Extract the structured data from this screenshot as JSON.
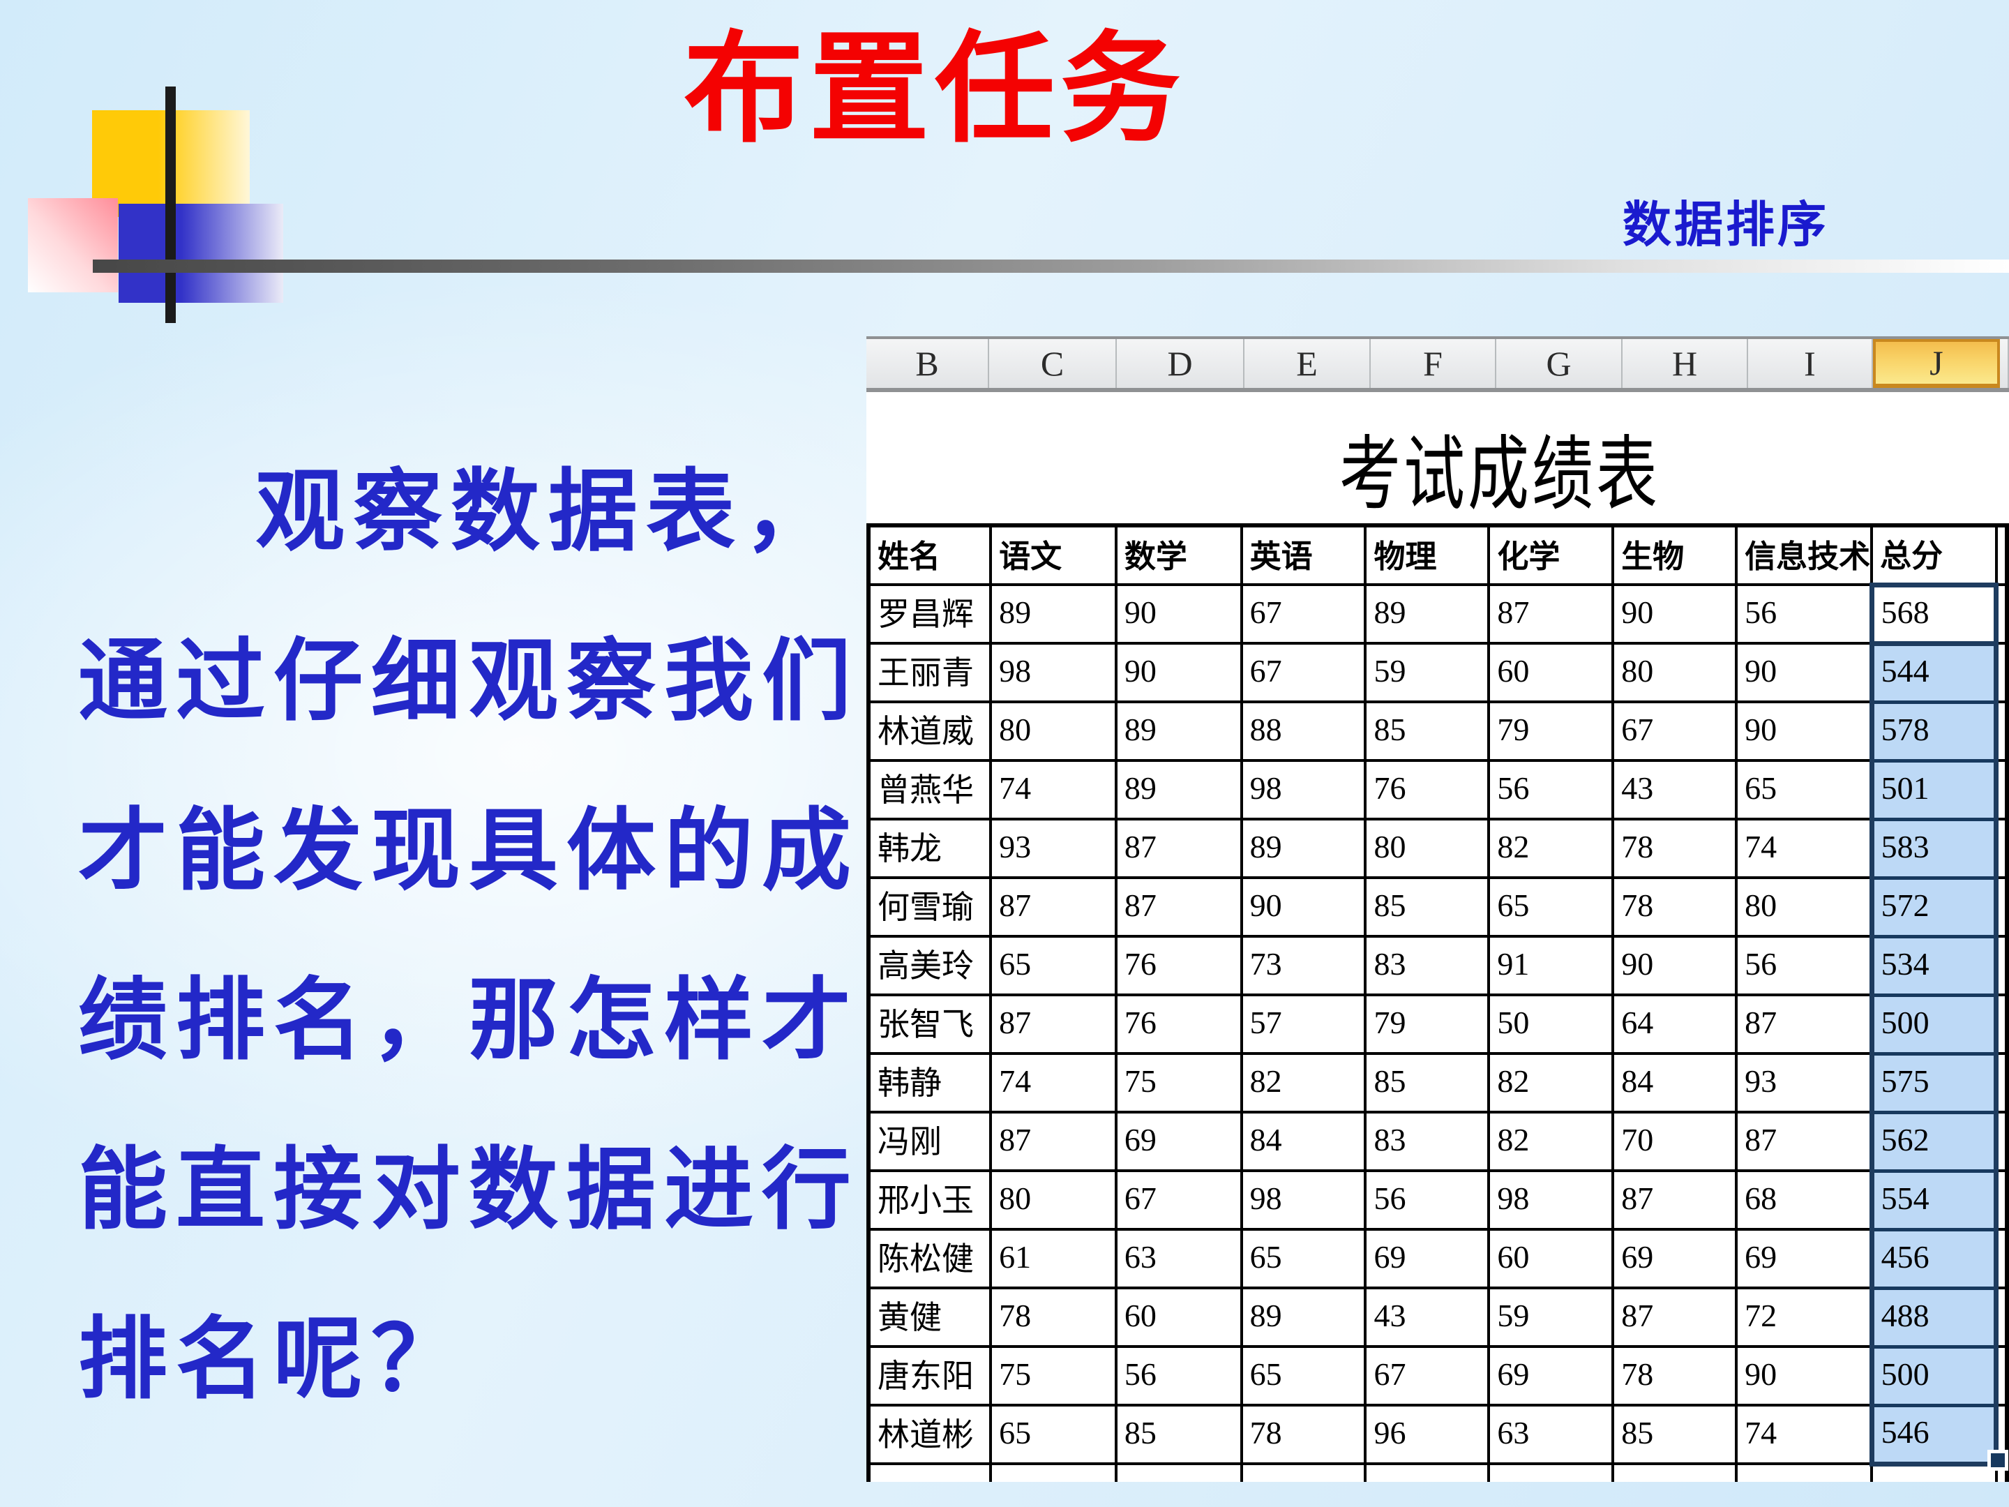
{
  "slide": {
    "title": "布置任务",
    "corner_label": "数据排序",
    "body_lines": [
      "观察数据表，",
      "通过仔细观察我们",
      "才能发现具体的成",
      "绩排名，那怎样才",
      "能直接对数据进行",
      "排名呢？"
    ]
  },
  "spreadsheet": {
    "column_letters": [
      "B",
      "C",
      "D",
      "E",
      "F",
      "G",
      "H",
      "I",
      "J"
    ],
    "selected_column": "J",
    "sheet_title": "考试成绩表",
    "table": {
      "headers": [
        "姓名",
        "语文",
        "数学",
        "英语",
        "物理",
        "化学",
        "生物",
        "信息技术",
        "总分"
      ],
      "rows": [
        [
          "罗昌辉",
          "89",
          "90",
          "67",
          "89",
          "87",
          "90",
          "56",
          "568"
        ],
        [
          "王丽青",
          "98",
          "90",
          "67",
          "59",
          "60",
          "80",
          "90",
          "544"
        ],
        [
          "林道威",
          "80",
          "89",
          "88",
          "85",
          "79",
          "67",
          "90",
          "578"
        ],
        [
          "曾燕华",
          "74",
          "89",
          "98",
          "76",
          "56",
          "43",
          "65",
          "501"
        ],
        [
          "韩龙",
          "93",
          "87",
          "89",
          "80",
          "82",
          "78",
          "74",
          "583"
        ],
        [
          "何雪瑜",
          "87",
          "87",
          "90",
          "85",
          "65",
          "78",
          "80",
          "572"
        ],
        [
          "高美玲",
          "65",
          "76",
          "73",
          "83",
          "91",
          "90",
          "56",
          "534"
        ],
        [
          "张智飞",
          "87",
          "76",
          "57",
          "79",
          "50",
          "64",
          "87",
          "500"
        ],
        [
          "韩静",
          "74",
          "75",
          "82",
          "85",
          "82",
          "84",
          "93",
          "575"
        ],
        [
          "冯刚",
          "87",
          "69",
          "84",
          "83",
          "82",
          "70",
          "87",
          "562"
        ],
        [
          "邢小玉",
          "80",
          "67",
          "98",
          "56",
          "98",
          "87",
          "68",
          "554"
        ],
        [
          "陈松健",
          "61",
          "63",
          "65",
          "69",
          "60",
          "69",
          "69",
          "456"
        ],
        [
          "黄健",
          "78",
          "60",
          "89",
          "43",
          "59",
          "87",
          "72",
          "488"
        ],
        [
          "唐东阳",
          "75",
          "56",
          "65",
          "67",
          "69",
          "78",
          "90",
          "500"
        ],
        [
          "林道彬",
          "65",
          "85",
          "78",
          "96",
          "63",
          "85",
          "74",
          "546"
        ]
      ]
    }
  },
  "colors": {
    "title_red": "#f40202",
    "text_blue": "#2328c8",
    "corner_blue": "#1a1ace",
    "selection_fill": "#bdd9f6",
    "selection_border": "#1e3c5f",
    "selected_column_header": "#f9d469",
    "background_blue": "#d2ebfa"
  }
}
